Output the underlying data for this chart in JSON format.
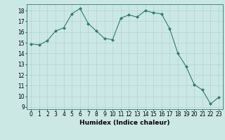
{
  "x": [
    0,
    1,
    2,
    3,
    4,
    5,
    6,
    7,
    8,
    9,
    10,
    11,
    12,
    13,
    14,
    15,
    16,
    17,
    18,
    19,
    20,
    21,
    22,
    23
  ],
  "y": [
    14.9,
    14.8,
    15.2,
    16.1,
    16.4,
    17.7,
    18.2,
    16.8,
    16.1,
    15.4,
    15.3,
    17.3,
    17.6,
    17.4,
    18.0,
    17.8,
    17.7,
    16.3,
    14.0,
    12.8,
    11.1,
    10.6,
    9.3,
    9.9
  ],
  "line_color": "#2e7d6e",
  "marker_color": "#2e7d6e",
  "bg_color": "#cce8e4",
  "grid_color": "#aacfcb",
  "xlabel": "Humidex (Indice chaleur)",
  "xlim": [
    -0.5,
    23.5
  ],
  "ylim": [
    8.8,
    18.6
  ],
  "yticks": [
    9,
    10,
    11,
    12,
    13,
    14,
    15,
    16,
    17,
    18
  ],
  "xticks": [
    0,
    1,
    2,
    3,
    4,
    5,
    6,
    7,
    8,
    9,
    10,
    11,
    12,
    13,
    14,
    15,
    16,
    17,
    18,
    19,
    20,
    21,
    22,
    23
  ],
  "xlabel_fontsize": 6.5,
  "tick_fontsize": 5.5
}
